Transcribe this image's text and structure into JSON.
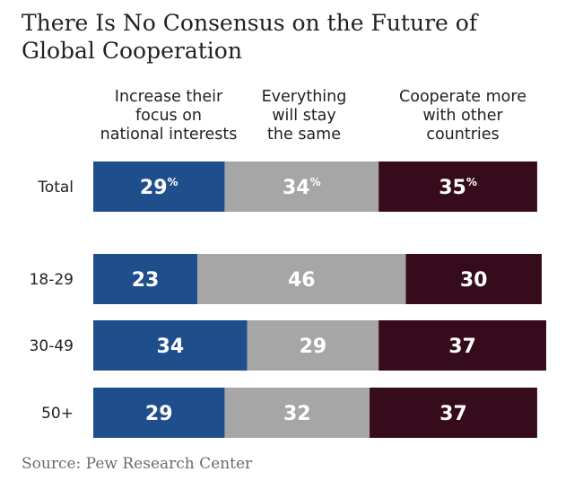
{
  "title_lines": [
    "There Is No Consensus on the Future of",
    "Global Cooperation"
  ],
  "source": "Source: Pew Research Center",
  "colors": {
    "increase": "#1f4e8c",
    "same": "#a6a6a6",
    "cooperate": "#360b1b",
    "label_text": "#ffffff",
    "row_label": "#222222"
  },
  "chart_data": {
    "type": "bar",
    "orientation": "horizontal",
    "stacked": true,
    "percent_suffix_row": "Total",
    "suffix": "%",
    "column_headers": [
      [
        "Increase their",
        "focus on",
        "national interests"
      ],
      [
        "Everything",
        "will stay",
        "the same"
      ],
      [
        "Cooperate more",
        "with other",
        "countries"
      ]
    ],
    "categories": [
      "Total",
      "18-29",
      "30-49",
      "50+"
    ],
    "series": [
      {
        "values": [
          29,
          23,
          34,
          29
        ],
        "color_key": "increase"
      },
      {
        "values": [
          34,
          46,
          29,
          32
        ],
        "color_key": "same"
      },
      {
        "values": [
          35,
          30,
          37,
          37
        ],
        "color_key": "cooperate"
      }
    ]
  }
}
